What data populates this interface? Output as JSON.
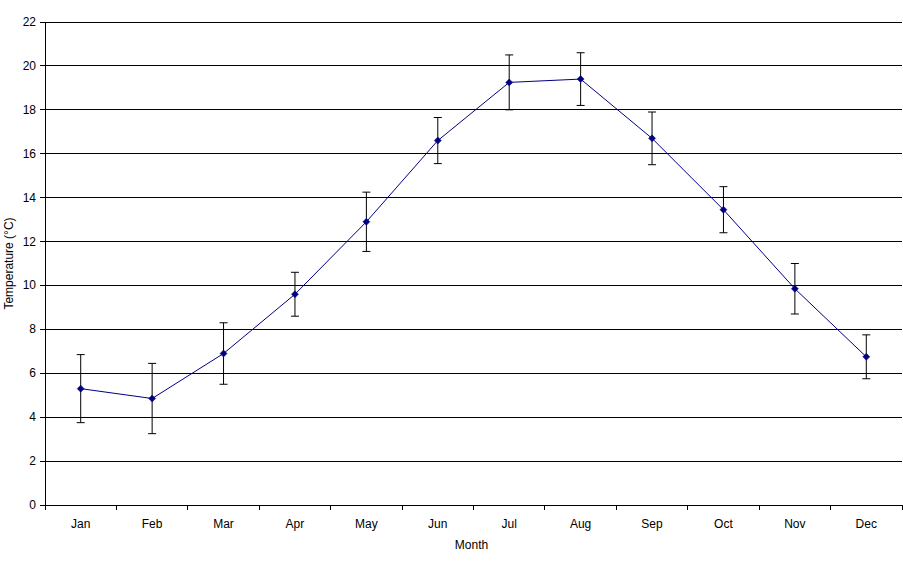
{
  "chart_data": {
    "type": "line",
    "x_label": "Month",
    "y_label": "Temperature (°C)",
    "categories": [
      "Jan",
      "Feb",
      "Mar",
      "Apr",
      "May",
      "Jun",
      "Jul",
      "Aug",
      "Sep",
      "Oct",
      "Nov",
      "Dec"
    ],
    "values": [
      5.3,
      4.85,
      6.9,
      9.6,
      12.9,
      16.6,
      19.25,
      19.4,
      16.7,
      13.45,
      9.85,
      6.75
    ],
    "errors": [
      1.55,
      1.6,
      1.4,
      1.0,
      1.35,
      1.05,
      1.25,
      1.2,
      1.2,
      1.05,
      1.15,
      1.0
    ],
    "color": "#000080",
    "marker": "diamond",
    "ylim": [
      0,
      22
    ],
    "yticks": [
      0,
      2,
      4,
      6,
      8,
      10,
      12,
      14,
      16,
      18,
      20,
      22
    ],
    "grid": true
  }
}
